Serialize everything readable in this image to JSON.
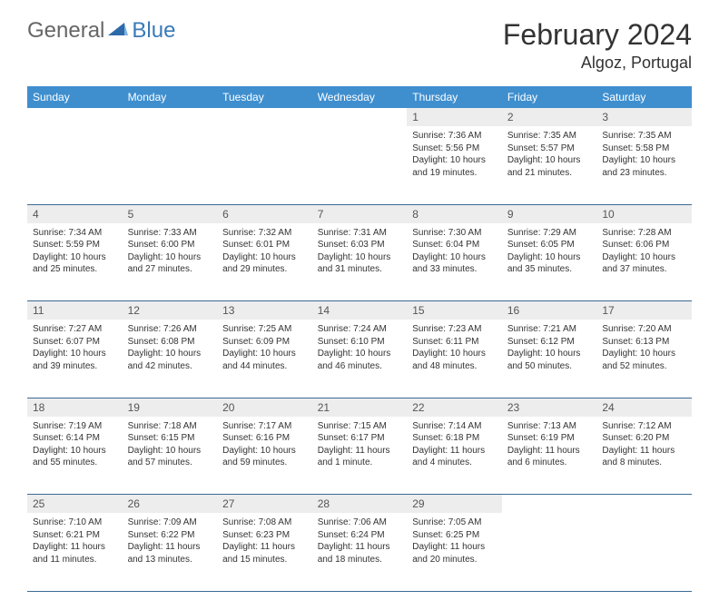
{
  "logo": {
    "part1": "General",
    "part2": "Blue"
  },
  "title": "February 2024",
  "location": "Algoz, Portugal",
  "colors": {
    "header_bg": "#3f8fcf",
    "header_text": "#ffffff",
    "daynum_bg": "#ededed",
    "border": "#3a6a95",
    "logo_gray": "#666666",
    "logo_blue": "#3a7ab8"
  },
  "day_headers": [
    "Sunday",
    "Monday",
    "Tuesday",
    "Wednesday",
    "Thursday",
    "Friday",
    "Saturday"
  ],
  "weeks": [
    [
      null,
      null,
      null,
      null,
      {
        "n": "1",
        "sr": "Sunrise: 7:36 AM",
        "ss": "Sunset: 5:56 PM",
        "d1": "Daylight: 10 hours",
        "d2": "and 19 minutes."
      },
      {
        "n": "2",
        "sr": "Sunrise: 7:35 AM",
        "ss": "Sunset: 5:57 PM",
        "d1": "Daylight: 10 hours",
        "d2": "and 21 minutes."
      },
      {
        "n": "3",
        "sr": "Sunrise: 7:35 AM",
        "ss": "Sunset: 5:58 PM",
        "d1": "Daylight: 10 hours",
        "d2": "and 23 minutes."
      }
    ],
    [
      {
        "n": "4",
        "sr": "Sunrise: 7:34 AM",
        "ss": "Sunset: 5:59 PM",
        "d1": "Daylight: 10 hours",
        "d2": "and 25 minutes."
      },
      {
        "n": "5",
        "sr": "Sunrise: 7:33 AM",
        "ss": "Sunset: 6:00 PM",
        "d1": "Daylight: 10 hours",
        "d2": "and 27 minutes."
      },
      {
        "n": "6",
        "sr": "Sunrise: 7:32 AM",
        "ss": "Sunset: 6:01 PM",
        "d1": "Daylight: 10 hours",
        "d2": "and 29 minutes."
      },
      {
        "n": "7",
        "sr": "Sunrise: 7:31 AM",
        "ss": "Sunset: 6:03 PM",
        "d1": "Daylight: 10 hours",
        "d2": "and 31 minutes."
      },
      {
        "n": "8",
        "sr": "Sunrise: 7:30 AM",
        "ss": "Sunset: 6:04 PM",
        "d1": "Daylight: 10 hours",
        "d2": "and 33 minutes."
      },
      {
        "n": "9",
        "sr": "Sunrise: 7:29 AM",
        "ss": "Sunset: 6:05 PM",
        "d1": "Daylight: 10 hours",
        "d2": "and 35 minutes."
      },
      {
        "n": "10",
        "sr": "Sunrise: 7:28 AM",
        "ss": "Sunset: 6:06 PM",
        "d1": "Daylight: 10 hours",
        "d2": "and 37 minutes."
      }
    ],
    [
      {
        "n": "11",
        "sr": "Sunrise: 7:27 AM",
        "ss": "Sunset: 6:07 PM",
        "d1": "Daylight: 10 hours",
        "d2": "and 39 minutes."
      },
      {
        "n": "12",
        "sr": "Sunrise: 7:26 AM",
        "ss": "Sunset: 6:08 PM",
        "d1": "Daylight: 10 hours",
        "d2": "and 42 minutes."
      },
      {
        "n": "13",
        "sr": "Sunrise: 7:25 AM",
        "ss": "Sunset: 6:09 PM",
        "d1": "Daylight: 10 hours",
        "d2": "and 44 minutes."
      },
      {
        "n": "14",
        "sr": "Sunrise: 7:24 AM",
        "ss": "Sunset: 6:10 PM",
        "d1": "Daylight: 10 hours",
        "d2": "and 46 minutes."
      },
      {
        "n": "15",
        "sr": "Sunrise: 7:23 AM",
        "ss": "Sunset: 6:11 PM",
        "d1": "Daylight: 10 hours",
        "d2": "and 48 minutes."
      },
      {
        "n": "16",
        "sr": "Sunrise: 7:21 AM",
        "ss": "Sunset: 6:12 PM",
        "d1": "Daylight: 10 hours",
        "d2": "and 50 minutes."
      },
      {
        "n": "17",
        "sr": "Sunrise: 7:20 AM",
        "ss": "Sunset: 6:13 PM",
        "d1": "Daylight: 10 hours",
        "d2": "and 52 minutes."
      }
    ],
    [
      {
        "n": "18",
        "sr": "Sunrise: 7:19 AM",
        "ss": "Sunset: 6:14 PM",
        "d1": "Daylight: 10 hours",
        "d2": "and 55 minutes."
      },
      {
        "n": "19",
        "sr": "Sunrise: 7:18 AM",
        "ss": "Sunset: 6:15 PM",
        "d1": "Daylight: 10 hours",
        "d2": "and 57 minutes."
      },
      {
        "n": "20",
        "sr": "Sunrise: 7:17 AM",
        "ss": "Sunset: 6:16 PM",
        "d1": "Daylight: 10 hours",
        "d2": "and 59 minutes."
      },
      {
        "n": "21",
        "sr": "Sunrise: 7:15 AM",
        "ss": "Sunset: 6:17 PM",
        "d1": "Daylight: 11 hours",
        "d2": "and 1 minute."
      },
      {
        "n": "22",
        "sr": "Sunrise: 7:14 AM",
        "ss": "Sunset: 6:18 PM",
        "d1": "Daylight: 11 hours",
        "d2": "and 4 minutes."
      },
      {
        "n": "23",
        "sr": "Sunrise: 7:13 AM",
        "ss": "Sunset: 6:19 PM",
        "d1": "Daylight: 11 hours",
        "d2": "and 6 minutes."
      },
      {
        "n": "24",
        "sr": "Sunrise: 7:12 AM",
        "ss": "Sunset: 6:20 PM",
        "d1": "Daylight: 11 hours",
        "d2": "and 8 minutes."
      }
    ],
    [
      {
        "n": "25",
        "sr": "Sunrise: 7:10 AM",
        "ss": "Sunset: 6:21 PM",
        "d1": "Daylight: 11 hours",
        "d2": "and 11 minutes."
      },
      {
        "n": "26",
        "sr": "Sunrise: 7:09 AM",
        "ss": "Sunset: 6:22 PM",
        "d1": "Daylight: 11 hours",
        "d2": "and 13 minutes."
      },
      {
        "n": "27",
        "sr": "Sunrise: 7:08 AM",
        "ss": "Sunset: 6:23 PM",
        "d1": "Daylight: 11 hours",
        "d2": "and 15 minutes."
      },
      {
        "n": "28",
        "sr": "Sunrise: 7:06 AM",
        "ss": "Sunset: 6:24 PM",
        "d1": "Daylight: 11 hours",
        "d2": "and 18 minutes."
      },
      {
        "n": "29",
        "sr": "Sunrise: 7:05 AM",
        "ss": "Sunset: 6:25 PM",
        "d1": "Daylight: 11 hours",
        "d2": "and 20 minutes."
      },
      null,
      null
    ]
  ]
}
